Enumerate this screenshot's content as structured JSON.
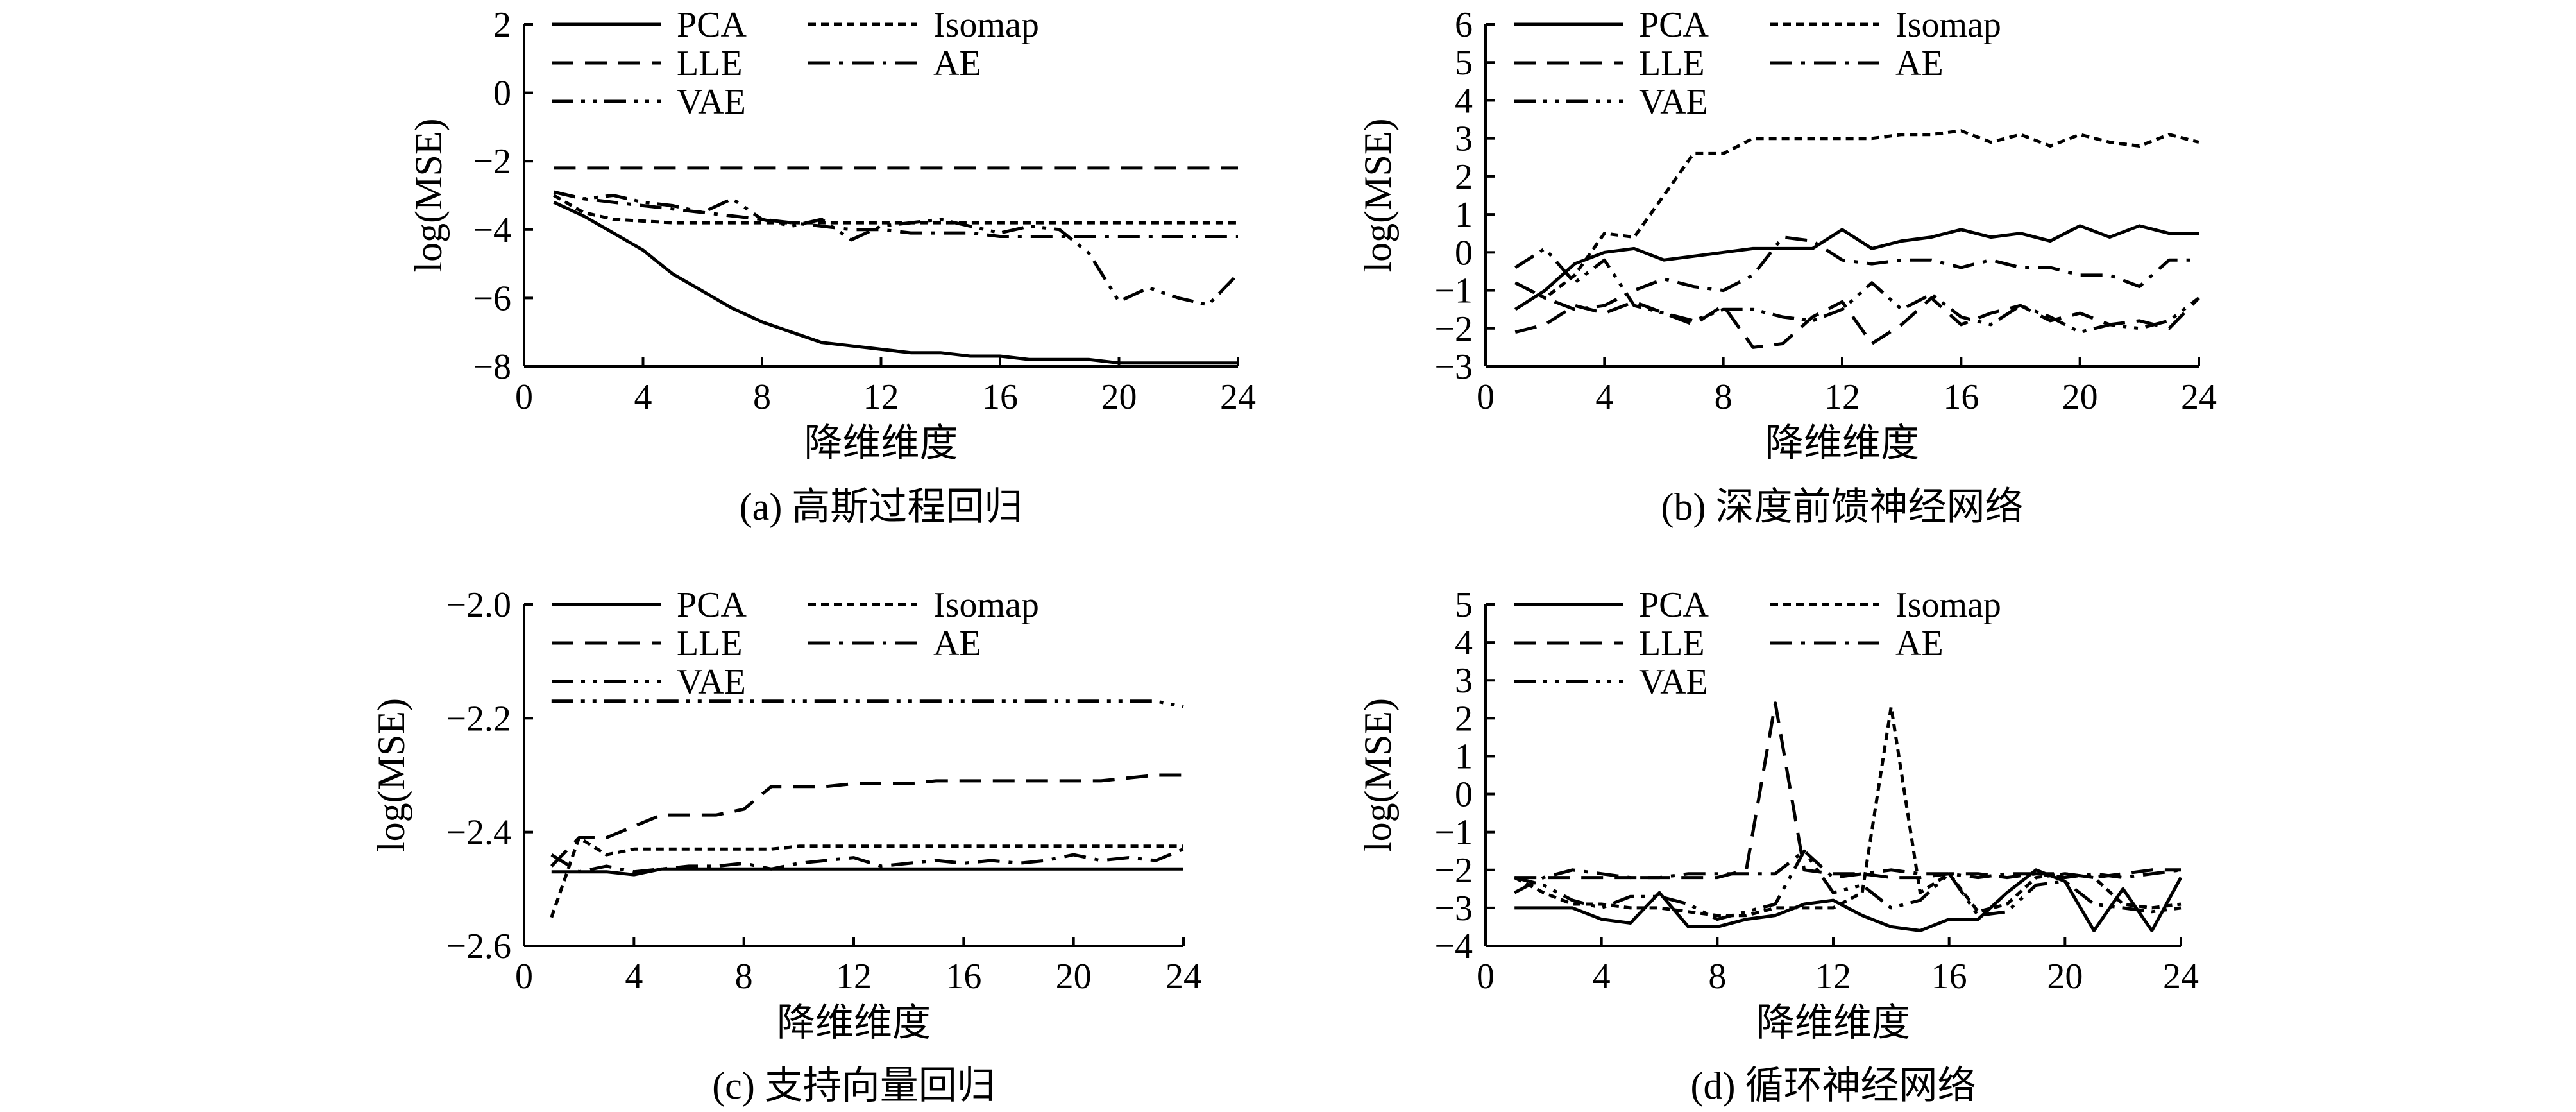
{
  "chart_data": [
    {
      "type": "line",
      "caption": "(a) 高斯过程回归",
      "xlabel": "降维维度",
      "ylabel": "log(MSE)",
      "xlim": [
        0,
        24
      ],
      "ylim": [
        -8,
        2
      ],
      "xticks": [
        "0",
        "4",
        "8",
        "12",
        "16",
        "20",
        "24"
      ],
      "yticks": [
        "2",
        "0",
        "−2",
        "−4",
        "−6",
        "−8"
      ],
      "x": [
        1,
        2,
        3,
        4,
        5,
        6,
        7,
        8,
        9,
        10,
        11,
        12,
        13,
        14,
        15,
        16,
        17,
        18,
        19,
        20,
        21,
        22,
        23,
        24
      ],
      "series": [
        {
          "name": "PCA",
          "style": "solid",
          "values": [
            -3.2,
            -3.6,
            -4.1,
            -4.6,
            -5.3,
            -5.8,
            -6.3,
            -6.7,
            -7.0,
            -7.3,
            -7.4,
            -7.5,
            -7.6,
            -7.6,
            -7.7,
            -7.7,
            -7.8,
            -7.8,
            -7.8,
            -7.9,
            -7.9,
            -7.9,
            -7.9,
            -7.9
          ]
        },
        {
          "name": "Isomap",
          "style": "dotted",
          "values": [
            -3.0,
            -3.5,
            -3.7,
            -3.75,
            -3.8,
            -3.8,
            -3.8,
            -3.8,
            -3.8,
            -3.8,
            -3.8,
            -3.8,
            -3.8,
            -3.8,
            -3.8,
            -3.8,
            -3.8,
            -3.8,
            -3.8,
            -3.8,
            -3.8,
            -3.8,
            -3.8,
            -3.8
          ]
        },
        {
          "name": "LLE",
          "style": "dashed",
          "values": [
            -2.2,
            -2.2,
            -2.2,
            -2.2,
            -2.2,
            -2.2,
            -2.2,
            -2.2,
            -2.2,
            -2.2,
            -2.2,
            -2.2,
            -2.2,
            -2.2,
            -2.2,
            -2.2,
            -2.2,
            -2.2,
            -2.2,
            -2.2,
            -2.2,
            -2.2,
            -2.2,
            -2.2
          ]
        },
        {
          "name": "AE",
          "style": "dashdot",
          "values": [
            -2.9,
            -3.1,
            -3.2,
            -3.3,
            -3.4,
            -3.5,
            -3.6,
            -3.7,
            -3.8,
            -3.9,
            -4.0,
            -4.0,
            -4.1,
            -4.1,
            -4.1,
            -4.2,
            -4.2,
            -4.2,
            -4.2,
            -4.2,
            -4.2,
            -4.2,
            -4.2,
            -4.2
          ]
        },
        {
          "name": "VAE",
          "style": "dashdotdot",
          "values": [
            -2.9,
            -3.1,
            -3.0,
            -3.2,
            -3.3,
            -3.5,
            -3.1,
            -3.7,
            -3.9,
            -3.7,
            -4.3,
            -3.9,
            -3.8,
            -3.7,
            -3.9,
            -4.1,
            -3.9,
            -4.0,
            -4.7,
            -6.1,
            -5.7,
            -6.0,
            -6.2,
            -5.3
          ]
        }
      ]
    },
    {
      "type": "line",
      "caption": "(b) 深度前馈神经网络",
      "xlabel": "降维维度",
      "ylabel": "log(MSE)",
      "xlim": [
        0,
        24
      ],
      "ylim": [
        -3,
        6
      ],
      "xticks": [
        "0",
        "4",
        "8",
        "12",
        "16",
        "20",
        "24"
      ],
      "yticks": [
        "6",
        "5",
        "4",
        "3",
        "2",
        "1",
        "0",
        "−1",
        "−2",
        "−3"
      ],
      "x": [
        1,
        2,
        3,
        4,
        5,
        6,
        7,
        8,
        9,
        10,
        11,
        12,
        13,
        14,
        15,
        16,
        17,
        18,
        19,
        20,
        21,
        22,
        23,
        24
      ],
      "series": [
        {
          "name": "PCA",
          "style": "solid",
          "values": [
            -1.5,
            -1.0,
            -0.3,
            0.0,
            0.1,
            -0.2,
            -0.1,
            0.0,
            0.1,
            0.1,
            0.1,
            0.6,
            0.1,
            0.3,
            0.4,
            0.6,
            0.4,
            0.5,
            0.3,
            0.7,
            0.4,
            0.7,
            0.5,
            0.5
          ]
        },
        {
          "name": "Isomap",
          "style": "dotted",
          "values": [
            -0.8,
            -1.2,
            -0.6,
            0.5,
            0.4,
            1.5,
            2.6,
            2.6,
            3.0,
            3.0,
            3.0,
            3.0,
            3.0,
            3.1,
            3.1,
            3.2,
            2.9,
            3.1,
            2.8,
            3.1,
            2.9,
            2.8,
            3.1,
            2.9
          ]
        },
        {
          "name": "LLE",
          "style": "dashed",
          "values": [
            -2.1,
            -1.9,
            -1.4,
            -1.6,
            -1.3,
            -1.6,
            -1.9,
            -1.4,
            -2.5,
            -2.4,
            -1.7,
            -1.3,
            -2.4,
            -1.9,
            -1.2,
            -1.9,
            -1.6,
            -1.4,
            -1.8,
            -1.6,
            -1.9,
            -1.8,
            -2.0,
            -1.2
          ]
        },
        {
          "name": "AE",
          "style": "dashdot",
          "values": [
            -0.8,
            -1.2,
            -1.5,
            -1.4,
            -1.0,
            -0.7,
            -0.9,
            -1.0,
            -0.6,
            0.4,
            0.3,
            -0.2,
            -0.3,
            -0.2,
            -0.2,
            -0.4,
            -0.2,
            -0.4,
            -0.4,
            -0.6,
            -0.6,
            -0.9,
            -0.2,
            -0.2
          ]
        },
        {
          "name": "VAE",
          "style": "dashdotdot",
          "values": [
            -0.4,
            0.1,
            -0.8,
            -0.2,
            -1.4,
            -1.6,
            -1.8,
            -1.5,
            -1.5,
            -1.7,
            -1.8,
            -1.5,
            -0.8,
            -1.5,
            -1.1,
            -1.7,
            -1.9,
            -1.4,
            -1.7,
            -2.1,
            -1.9,
            -2.0,
            -1.8,
            -1.2
          ]
        }
      ]
    },
    {
      "type": "line",
      "caption": "(c) 支持向量回归",
      "xlabel": "降维维度",
      "ylabel": "log(MSE)",
      "xlim": [
        0,
        24
      ],
      "ylim": [
        -2.6,
        -2.0
      ],
      "xticks": [
        "0",
        "4",
        "8",
        "12",
        "16",
        "20",
        "24"
      ],
      "yticks": [
        "−2.0",
        "−2.2",
        "−2.4",
        "−2.6"
      ],
      "x": [
        1,
        2,
        3,
        4,
        5,
        6,
        7,
        8,
        9,
        10,
        11,
        12,
        13,
        14,
        15,
        16,
        17,
        18,
        19,
        20,
        21,
        22,
        23,
        24
      ],
      "series": [
        {
          "name": "PCA",
          "style": "solid",
          "values": [
            -2.47,
            -2.47,
            -2.47,
            -2.475,
            -2.465,
            -2.465,
            -2.465,
            -2.465,
            -2.465,
            -2.465,
            -2.465,
            -2.465,
            -2.465,
            -2.465,
            -2.465,
            -2.465,
            -2.465,
            -2.465,
            -2.465,
            -2.465,
            -2.465,
            -2.465,
            -2.465,
            -2.465
          ]
        },
        {
          "name": "Isomap",
          "style": "dotted",
          "values": [
            -2.55,
            -2.41,
            -2.44,
            -2.43,
            -2.43,
            -2.43,
            -2.43,
            -2.43,
            -2.43,
            -2.425,
            -2.425,
            -2.425,
            -2.425,
            -2.425,
            -2.425,
            -2.425,
            -2.425,
            -2.425,
            -2.425,
            -2.425,
            -2.425,
            -2.425,
            -2.425,
            -2.425
          ]
        },
        {
          "name": "LLE",
          "style": "dashed",
          "values": [
            -2.46,
            -2.41,
            -2.41,
            -2.39,
            -2.37,
            -2.37,
            -2.37,
            -2.36,
            -2.32,
            -2.32,
            -2.32,
            -2.315,
            -2.315,
            -2.315,
            -2.31,
            -2.31,
            -2.31,
            -2.31,
            -2.31,
            -2.31,
            -2.31,
            -2.305,
            -2.3,
            -2.3
          ]
        },
        {
          "name": "AE",
          "style": "dashdot",
          "values": [
            -2.44,
            -2.47,
            -2.46,
            -2.47,
            -2.465,
            -2.46,
            -2.46,
            -2.455,
            -2.465,
            -2.455,
            -2.45,
            -2.445,
            -2.46,
            -2.455,
            -2.45,
            -2.455,
            -2.45,
            -2.455,
            -2.45,
            -2.44,
            -2.45,
            -2.445,
            -2.45,
            -2.43
          ]
        },
        {
          "name": "VAE",
          "style": "dashdotdot",
          "values": [
            -2.17,
            -2.17,
            -2.17,
            -2.17,
            -2.17,
            -2.17,
            -2.17,
            -2.17,
            -2.17,
            -2.17,
            -2.17,
            -2.17,
            -2.17,
            -2.17,
            -2.17,
            -2.17,
            -2.17,
            -2.17,
            -2.17,
            -2.17,
            -2.17,
            -2.17,
            -2.17,
            -2.18
          ]
        }
      ]
    },
    {
      "type": "line",
      "caption": "(d) 循环神经网络",
      "xlabel": "降维维度",
      "ylabel": "log(MSE)",
      "xlim": [
        0,
        24
      ],
      "ylim": [
        -4,
        5
      ],
      "xticks": [
        "0",
        "4",
        "8",
        "12",
        "16",
        "20",
        "24"
      ],
      "yticks": [
        "5",
        "4",
        "3",
        "2",
        "1",
        "0",
        "−1",
        "−2",
        "−3",
        "−4"
      ],
      "x": [
        1,
        2,
        3,
        4,
        5,
        6,
        7,
        8,
        9,
        10,
        11,
        12,
        13,
        14,
        15,
        16,
        17,
        18,
        19,
        20,
        21,
        22,
        23,
        24
      ],
      "series": [
        {
          "name": "PCA",
          "style": "solid",
          "values": [
            -3.0,
            -3.0,
            -3.0,
            -3.3,
            -3.4,
            -2.6,
            -3.5,
            -3.5,
            -3.3,
            -3.2,
            -2.9,
            -2.8,
            -3.2,
            -3.5,
            -3.6,
            -3.3,
            -3.3,
            -2.6,
            -2.0,
            -2.3,
            -3.6,
            -2.5,
            -3.6,
            -2.2
          ]
        },
        {
          "name": "Isomap",
          "style": "dotted",
          "values": [
            -2.2,
            -2.6,
            -2.9,
            -2.9,
            -3.0,
            -3.0,
            -3.1,
            -3.2,
            -3.2,
            -3.0,
            -3.0,
            -3.0,
            -2.6,
            2.3,
            -2.6,
            -2.1,
            -3.1,
            -2.9,
            -2.2,
            -2.1,
            -2.2,
            -2.9,
            -3.0,
            -2.9
          ]
        },
        {
          "name": "LLE",
          "style": "dashed",
          "values": [
            -2.2,
            -2.2,
            -2.2,
            -2.2,
            -2.2,
            -2.2,
            -2.2,
            -2.2,
            -2.0,
            2.4,
            -2.0,
            -2.1,
            -2.1,
            -2.2,
            -2.2,
            -2.1,
            -2.1,
            -2.2,
            -2.1,
            -2.1,
            -2.2,
            -2.1,
            -2.0,
            -2.0
          ]
        },
        {
          "name": "AE",
          "style": "dashdot",
          "values": [
            -2.6,
            -2.2,
            -2.0,
            -2.1,
            -2.2,
            -2.2,
            -2.1,
            -2.1,
            -2.1,
            -2.1,
            -1.5,
            -2.2,
            -2.1,
            -2.0,
            -2.1,
            -2.1,
            -2.2,
            -2.1,
            -2.1,
            -2.2,
            -2.1,
            -2.2,
            -2.1,
            -2.0
          ]
        },
        {
          "name": "VAE",
          "style": "dashdotdot",
          "values": [
            -2.2,
            -2.4,
            -2.8,
            -3.0,
            -2.7,
            -2.7,
            -2.9,
            -3.3,
            -3.1,
            -2.9,
            -1.5,
            -2.6,
            -2.4,
            -3.0,
            -2.8,
            -2.1,
            -3.2,
            -3.1,
            -2.4,
            -2.3,
            -2.9,
            -3.0,
            -3.1,
            -3.0
          ]
        }
      ]
    }
  ],
  "legend_labels": [
    "PCA",
    "Isomap",
    "LLE",
    "AE",
    "VAE"
  ]
}
